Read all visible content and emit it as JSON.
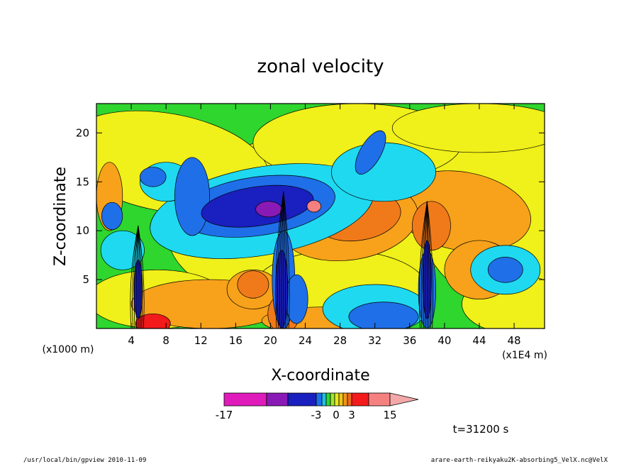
{
  "chart_data": {
    "type": "heatmap",
    "title": "zonal velocity",
    "xlabel": "X-coordinate",
    "ylabel": "Z-coordinate",
    "x_unit_label": "(x1E4 m)",
    "y_unit_label": "(x1000 m)",
    "xlim": [
      0,
      51.5
    ],
    "ylim": [
      0,
      23
    ],
    "x_ticks": [
      "4",
      "8",
      "12",
      "16",
      "20",
      "24",
      "28",
      "32",
      "36",
      "40",
      "44",
      "48"
    ],
    "y_ticks": [
      "5",
      "10",
      "15",
      "20"
    ],
    "colorbar": {
      "tick_labels": [
        "-17",
        "-3",
        "0",
        "3",
        "15"
      ],
      "colors": [
        "#e01bbb",
        "#8a1ab5",
        "#1a1fbf",
        "#1f6fe8",
        "#1fbfe8",
        "#2ed62e",
        "#9ee62e",
        "#e8e81a",
        "#f2c21a",
        "#f2961a",
        "#ee6a1a",
        "#f21a1a",
        "#f58080"
      ]
    },
    "time_label": "t=31200 s",
    "palette": {
      "deep_magenta": "#e01bbb",
      "purple": "#8a1ab5",
      "dark_blue": "#1a1fbf",
      "blue": "#1f6fe8",
      "cyan": "#1fd9f0",
      "green": "#2ed62e",
      "yellow": "#f0f01a",
      "orange": "#f7a21a",
      "dark_orange": "#f07a1a",
      "red": "#f21a1a",
      "pink": "#f58080"
    }
  },
  "footer": {
    "left": "/usr/local/bin/gpview  2010-11-09",
    "right": "arare-earth-reikyaku2K-absorbing5_VelX.nc@VelX"
  }
}
